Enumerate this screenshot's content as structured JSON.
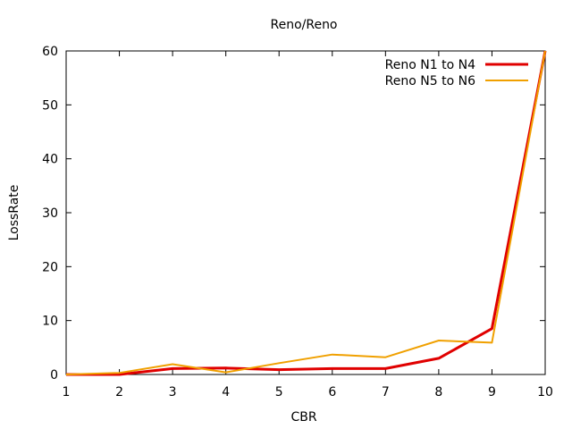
{
  "chart_data": {
    "type": "line",
    "title": "Reno/Reno",
    "xlabel": "CBR",
    "ylabel": "LossRate",
    "xlim": [
      1,
      10
    ],
    "ylim": [
      0,
      60
    ],
    "xticks": [
      1,
      2,
      3,
      4,
      5,
      6,
      7,
      8,
      9,
      10
    ],
    "yticks": [
      0,
      10,
      20,
      30,
      40,
      50,
      60
    ],
    "grid": false,
    "legend_position": "top-right",
    "series": [
      {
        "name": "Reno N1 to N4",
        "color": "#e00000",
        "x": [
          1,
          2,
          3,
          4,
          5,
          6,
          7,
          8,
          9,
          10
        ],
        "y": [
          0,
          0,
          1.1,
          1.2,
          0.9,
          1.1,
          1.1,
          3.0,
          8.5,
          60
        ]
      },
      {
        "name": "Reno N5 to N6",
        "color": "#f0a000",
        "x": [
          1,
          2,
          3,
          4,
          5,
          6,
          7,
          8,
          9,
          10
        ],
        "y": [
          0,
          0.3,
          1.9,
          0.4,
          2.1,
          3.7,
          3.2,
          6.3,
          5.9,
          60
        ]
      }
    ]
  }
}
